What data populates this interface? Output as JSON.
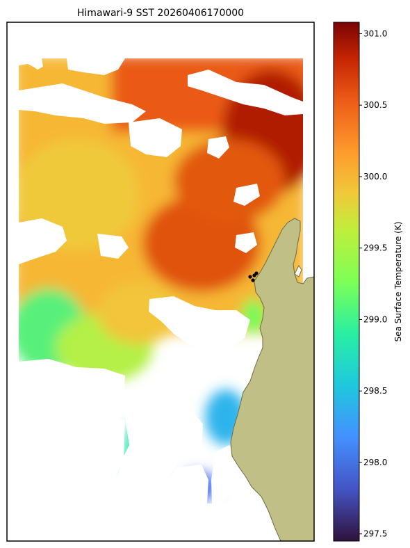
{
  "chart_data": {
    "type": "heatmap",
    "title": "Himawari-9 SST 20260406170000",
    "colorbar": {
      "label": "Sea Surface Temperature (K)",
      "range": [
        297.45,
        301.08
      ],
      "ticks": [
        {
          "value": 297.5,
          "label": "297.5"
        },
        {
          "value": 298.0,
          "label": "298.0"
        },
        {
          "value": 298.5,
          "label": "298.5"
        },
        {
          "value": 299.0,
          "label": "299.0"
        },
        {
          "value": 299.5,
          "label": "299.5"
        },
        {
          "value": 300.0,
          "label": "300.0"
        },
        {
          "value": 300.5,
          "label": "300.5"
        },
        {
          "value": 301.0,
          "label": "301.0"
        }
      ],
      "colormap": "turbo"
    },
    "regions": [
      {
        "id": "northeast-warm-core",
        "sst_k": 301.0
      },
      {
        "id": "north-band",
        "sst_k": 300.6
      },
      {
        "id": "central-eddy",
        "sst_k": 300.5
      },
      {
        "id": "western-plateau",
        "sst_k": 299.9
      },
      {
        "id": "southwest-cool",
        "sst_k": 299.1
      },
      {
        "id": "south-coastal-cool",
        "sst_k": 298.2
      },
      {
        "id": "far-south-patch",
        "sst_k": 297.8
      }
    ],
    "colors": {
      "land": "#bfbf86",
      "land_edge": "#6b6b4a",
      "cloud_mask": "#ffffff"
    },
    "markers": {
      "count": 4,
      "color": "#000000"
    }
  }
}
